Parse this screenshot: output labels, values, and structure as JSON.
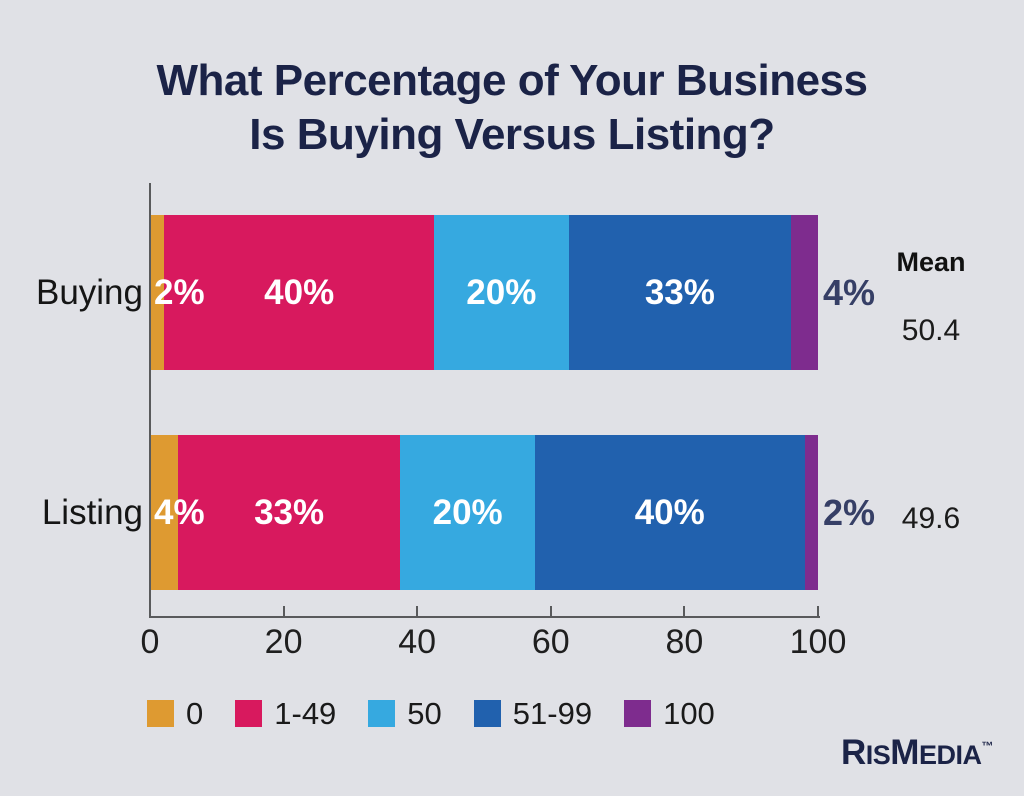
{
  "title": {
    "line1": "What Percentage of Your Business",
    "line2": "Is Buying Versus Listing?"
  },
  "colors": {
    "background": "#E0E1E6",
    "title_navy": "#1B2347",
    "outside_label_navy": "#363F66",
    "axis_line": "#595A5C",
    "axis_text": "#1F1F1F",
    "bar_label": "#FFFFFF",
    "category_text": "#151515",
    "orange": "#DE9A31",
    "pink": "#D8195E",
    "light_blue": "#36A9E0",
    "dark_blue": "#2161AE",
    "purple": "#7E2C8E"
  },
  "chart_data": {
    "type": "bar",
    "orientation": "horizontal",
    "stacked": true,
    "title": "What Percentage of Your Business Is Buying Versus Listing?",
    "x_axis": {
      "min": 0,
      "max": 100,
      "ticks": [
        0,
        20,
        40,
        60,
        80,
        100
      ],
      "gridlines": false
    },
    "mean_header": "Mean",
    "categories": [
      "Buying",
      "Listing"
    ],
    "rows": [
      {
        "category": "Buying",
        "mean": "50.4",
        "segments": [
          {
            "bucket": "0",
            "value": 2,
            "display": "2%",
            "color": "#DE9A31",
            "label_position": "start"
          },
          {
            "bucket": "1-49",
            "value": 40,
            "display": "40%",
            "color": "#D8195E",
            "label_position": "center"
          },
          {
            "bucket": "50",
            "value": 20,
            "display": "20%",
            "color": "#36A9E0",
            "label_position": "center"
          },
          {
            "bucket": "51-99",
            "value": 33,
            "display": "33%",
            "color": "#2161AE",
            "label_position": "center"
          },
          {
            "bucket": "100",
            "value": 4,
            "display": "4%",
            "color": "#7E2C8E",
            "label_position": "outside"
          }
        ]
      },
      {
        "category": "Listing",
        "mean": "49.6",
        "segments": [
          {
            "bucket": "0",
            "value": 4,
            "display": "4%",
            "color": "#DE9A31",
            "label_position": "start"
          },
          {
            "bucket": "1-49",
            "value": 33,
            "display": "33%",
            "color": "#D8195E",
            "label_position": "center"
          },
          {
            "bucket": "50",
            "value": 20,
            "display": "20%",
            "color": "#36A9E0",
            "label_position": "center"
          },
          {
            "bucket": "51-99",
            "value": 40,
            "display": "40%",
            "color": "#2161AE",
            "label_position": "center"
          },
          {
            "bucket": "100",
            "value": 2,
            "display": "2%",
            "color": "#7E2C8E",
            "label_position": "outside"
          }
        ]
      }
    ],
    "legend": {
      "position": "bottom",
      "items": [
        {
          "label": "0",
          "color": "#DE9A31"
        },
        {
          "label": "1-49",
          "color": "#D8195E"
        },
        {
          "label": "50",
          "color": "#36A9E0"
        },
        {
          "label": "51-99",
          "color": "#2161AE"
        },
        {
          "label": "100",
          "color": "#7E2C8E"
        }
      ]
    }
  },
  "branding": {
    "logo_parts": [
      {
        "text": "R",
        "size": "big"
      },
      {
        "text": "IS",
        "size": "small"
      },
      {
        "text": "M",
        "size": "big"
      },
      {
        "text": "EDIA",
        "size": "small"
      }
    ],
    "trademark": "™"
  }
}
